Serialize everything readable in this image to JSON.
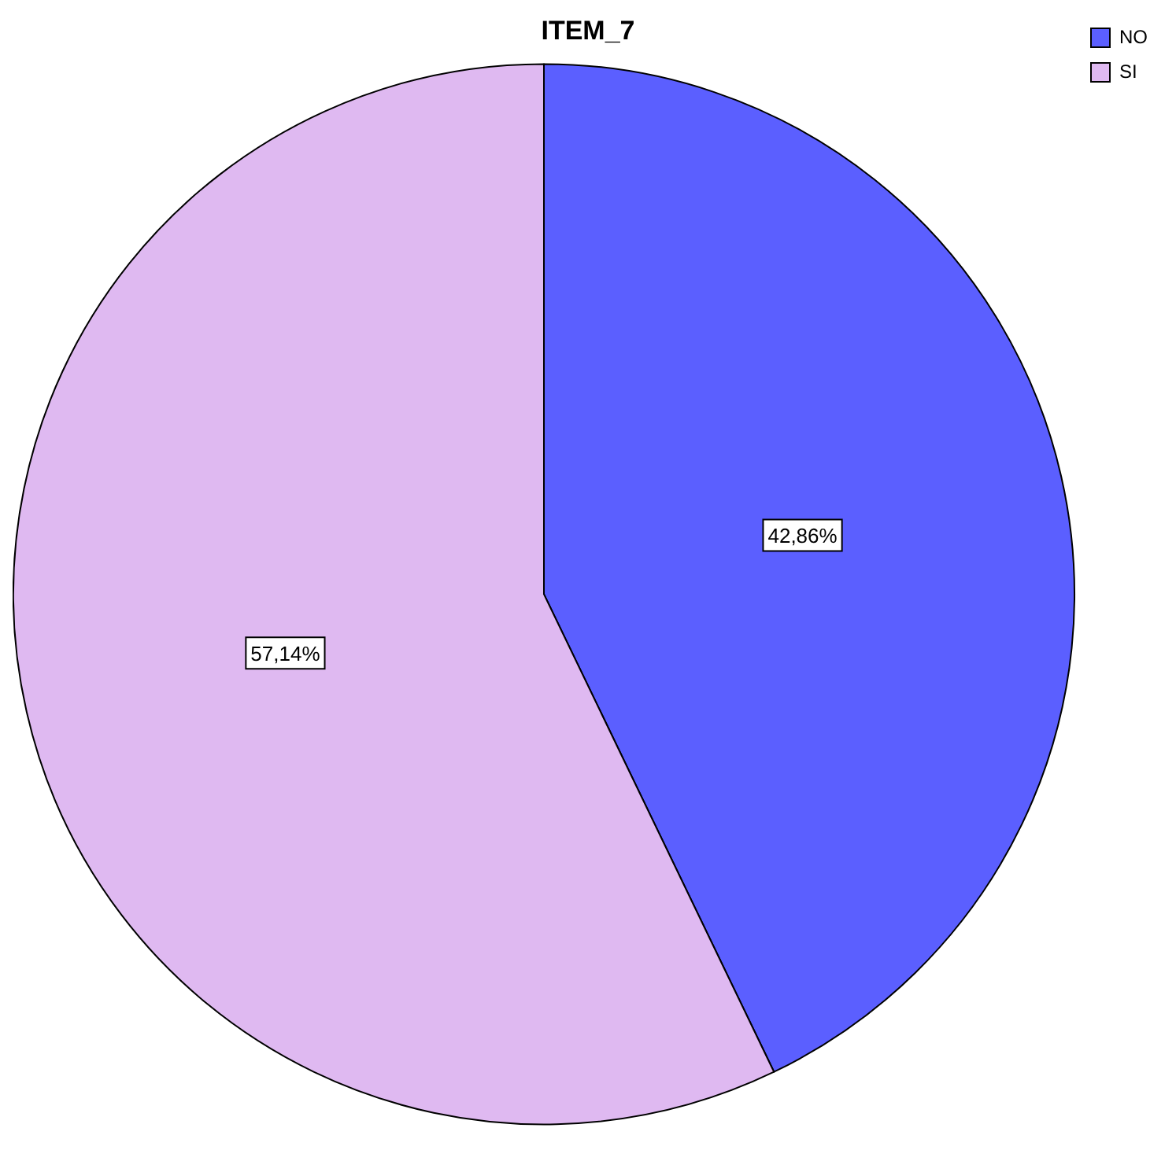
{
  "chart_data": {
    "type": "pie",
    "title": "ITEM_7",
    "categories": [
      "NO",
      "SI"
    ],
    "values": [
      42.86,
      57.14
    ],
    "colors": [
      "#5b5fff",
      "#dfb9f1"
    ],
    "value_labels": [
      "42,86%",
      "57,14%"
    ],
    "legend": "top right"
  }
}
